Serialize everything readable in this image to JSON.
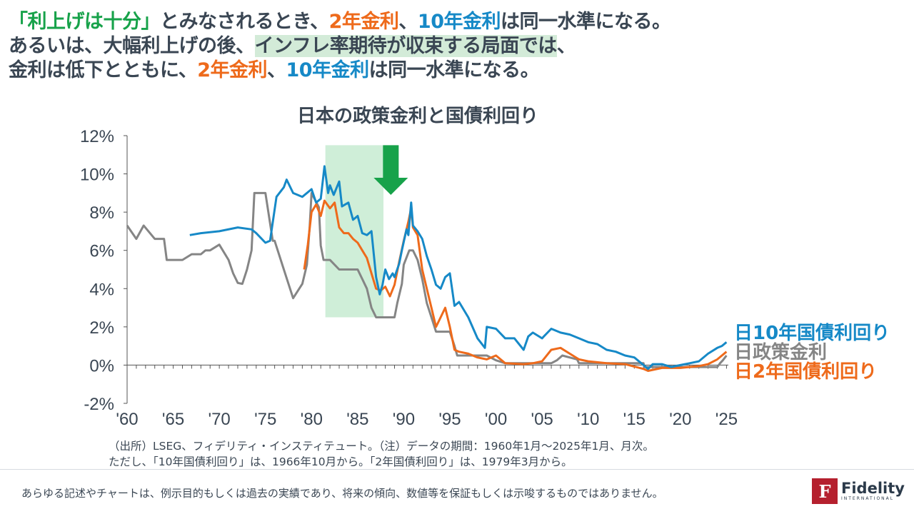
{
  "headline": {
    "line1": [
      {
        "text": "「利上げは十分」",
        "style": "green"
      },
      {
        "text": "とみなされるとき、",
        "style": ""
      },
      {
        "text": "2年金利",
        "style": "orange"
      },
      {
        "text": "、",
        "style": ""
      },
      {
        "text": "10年金利",
        "style": "blue"
      },
      {
        "text": "は同一水準になる。",
        "style": ""
      }
    ],
    "line2": [
      {
        "text": "あるいは、大幅利上げの後、",
        "style": ""
      },
      {
        "text": "インフレ率期待が収束する局面では",
        "style": "hilite"
      },
      {
        "text": "、",
        "style": ""
      }
    ],
    "line3": [
      {
        "text": "金利は低下とともに、",
        "style": ""
      },
      {
        "text": "2年金利",
        "style": "orange"
      },
      {
        "text": "、",
        "style": ""
      },
      {
        "text": "10年金利",
        "style": "blue"
      },
      {
        "text": "は同一水準になる。",
        "style": ""
      }
    ]
  },
  "chart_data": {
    "type": "line",
    "title": "日本の政策金利と国債利回り",
    "x_tick_labels": [
      "'60",
      "'65",
      "'70",
      "'75",
      "'80",
      "'85",
      "'90",
      "'95",
      "'00",
      "'05",
      "'10",
      "'15",
      "'20",
      "'25"
    ],
    "x_tick_years": [
      1960,
      1965,
      1970,
      1975,
      1980,
      1985,
      1990,
      1995,
      2000,
      2005,
      2010,
      2015,
      2020,
      2025
    ],
    "y_tick_labels": [
      "12%",
      "10%",
      "8%",
      "6%",
      "4%",
      "2%",
      "0%",
      "-2%"
    ],
    "y_tick_values": [
      12,
      10,
      8,
      6,
      4,
      2,
      0,
      -2
    ],
    "xlim": [
      1960,
      2025.2
    ],
    "ylim": [
      -2,
      12
    ],
    "units": "%",
    "legend_placement": "right (labels at line ends)",
    "grid": false,
    "highlight_band": {
      "x": [
        1981.5,
        1987.8
      ],
      "y": [
        2.5,
        11.5
      ],
      "color": "#cfeed8"
    },
    "arrow": {
      "x": 1988.6,
      "y_from": 11.5,
      "y_to": 8.9,
      "color": "#17a24a"
    },
    "series": [
      {
        "name": "日10年国債利回り",
        "color": "#1689c7",
        "points": [
          [
            1966.8,
            6.8
          ],
          [
            1968,
            6.9
          ],
          [
            1970,
            7.0
          ],
          [
            1972,
            7.2
          ],
          [
            1973.5,
            7.1
          ],
          [
            1974,
            6.9
          ],
          [
            1975,
            6.4
          ],
          [
            1975.5,
            6.5
          ],
          [
            1976.2,
            8.8
          ],
          [
            1977,
            9.3
          ],
          [
            1977.3,
            9.7
          ],
          [
            1978,
            9.0
          ],
          [
            1979,
            8.8
          ],
          [
            1980,
            9.2
          ],
          [
            1980.5,
            8.5
          ],
          [
            1981,
            8.7
          ],
          [
            1981.4,
            10.4
          ],
          [
            1981.8,
            9.0
          ],
          [
            1982,
            9.4
          ],
          [
            1982.4,
            8.9
          ],
          [
            1983,
            9.6
          ],
          [
            1983.3,
            8.3
          ],
          [
            1984,
            8.5
          ],
          [
            1984.5,
            7.6
          ],
          [
            1985,
            7.8
          ],
          [
            1985.5,
            6.9
          ],
          [
            1986,
            6.8
          ],
          [
            1986.5,
            7.0
          ],
          [
            1987,
            4.6
          ],
          [
            1987.4,
            3.7
          ],
          [
            1987.7,
            4.2
          ],
          [
            1988,
            5.0
          ],
          [
            1988.4,
            4.5
          ],
          [
            1988.8,
            4.8
          ],
          [
            1989,
            4.6
          ],
          [
            1989.5,
            5.3
          ],
          [
            1989.8,
            6.0
          ],
          [
            1990.3,
            7.1
          ],
          [
            1990.5,
            6.8
          ],
          [
            1990.8,
            8.5
          ],
          [
            1991,
            7.3
          ],
          [
            1991.5,
            7.0
          ],
          [
            1992,
            6.6
          ],
          [
            1992.5,
            5.7
          ],
          [
            1993,
            5.0
          ],
          [
            1993.5,
            4.2
          ],
          [
            1994,
            4.0
          ],
          [
            1994.5,
            4.6
          ],
          [
            1995,
            4.8
          ],
          [
            1995.5,
            3.1
          ],
          [
            1996,
            3.3
          ],
          [
            1997,
            2.5
          ],
          [
            1998,
            1.4
          ],
          [
            1998.8,
            0.9
          ],
          [
            1999,
            2.0
          ],
          [
            2000,
            1.9
          ],
          [
            2001,
            1.4
          ],
          [
            2002,
            1.4
          ],
          [
            2003,
            0.8
          ],
          [
            2003.5,
            1.5
          ],
          [
            2004,
            1.7
          ],
          [
            2005,
            1.4
          ],
          [
            2006,
            1.9
          ],
          [
            2007,
            1.7
          ],
          [
            2008,
            1.6
          ],
          [
            2009,
            1.4
          ],
          [
            2010,
            1.2
          ],
          [
            2011,
            1.1
          ],
          [
            2012,
            0.8
          ],
          [
            2013,
            0.7
          ],
          [
            2014,
            0.5
          ],
          [
            2015,
            0.4
          ],
          [
            2016,
            0.0
          ],
          [
            2016.5,
            -0.2
          ],
          [
            2017,
            0.05
          ],
          [
            2018,
            0.05
          ],
          [
            2019,
            -0.1
          ],
          [
            2020,
            0.0
          ],
          [
            2021,
            0.1
          ],
          [
            2022,
            0.2
          ],
          [
            2023,
            0.6
          ],
          [
            2024,
            0.9
          ],
          [
            2024.5,
            1.0
          ],
          [
            2025,
            1.2
          ]
        ]
      },
      {
        "name": "日政策金利",
        "color": "#858585",
        "points": [
          [
            1960,
            7.3
          ],
          [
            1961,
            6.6
          ],
          [
            1961.8,
            7.3
          ],
          [
            1963,
            6.6
          ],
          [
            1964,
            6.6
          ],
          [
            1964.3,
            5.5
          ],
          [
            1965,
            5.5
          ],
          [
            1966,
            5.5
          ],
          [
            1967,
            5.8
          ],
          [
            1968,
            5.8
          ],
          [
            1968.5,
            6.0
          ],
          [
            1969,
            6.0
          ],
          [
            1970,
            6.3
          ],
          [
            1971,
            5.5
          ],
          [
            1971.5,
            4.8
          ],
          [
            1972,
            4.3
          ],
          [
            1972.5,
            4.25
          ],
          [
            1973,
            5.0
          ],
          [
            1973.5,
            6.0
          ],
          [
            1973.8,
            9.0
          ],
          [
            1975,
            9.0
          ],
          [
            1975.8,
            6.5
          ],
          [
            1976,
            6.5
          ],
          [
            1977,
            5.0
          ],
          [
            1978,
            3.5
          ],
          [
            1979,
            4.25
          ],
          [
            1979.5,
            5.25
          ],
          [
            1979.8,
            7.25
          ],
          [
            1980,
            9.0
          ],
          [
            1980.8,
            8.25
          ],
          [
            1981,
            6.25
          ],
          [
            1981.3,
            5.5
          ],
          [
            1982,
            5.5
          ],
          [
            1983,
            5.0
          ],
          [
            1984,
            5.0
          ],
          [
            1985,
            5.0
          ],
          [
            1986,
            4.0
          ],
          [
            1986.5,
            3.0
          ],
          [
            1987,
            2.5
          ],
          [
            1988,
            2.5
          ],
          [
            1989,
            2.5
          ],
          [
            1989.3,
            3.25
          ],
          [
            1989.8,
            4.25
          ],
          [
            1990,
            5.25
          ],
          [
            1990.6,
            6.0
          ],
          [
            1991,
            6.0
          ],
          [
            1991.5,
            5.5
          ],
          [
            1992,
            4.5
          ],
          [
            1992.5,
            3.25
          ],
          [
            1993,
            2.5
          ],
          [
            1993.5,
            1.75
          ],
          [
            1995,
            1.75
          ],
          [
            1995.5,
            1.0
          ],
          [
            1995.8,
            0.5
          ],
          [
            1999,
            0.5
          ],
          [
            2000,
            0.25
          ],
          [
            2001,
            0.1
          ],
          [
            2006,
            0.1
          ],
          [
            2006.6,
            0.25
          ],
          [
            2007.2,
            0.5
          ],
          [
            2008.8,
            0.3
          ],
          [
            2009,
            0.1
          ],
          [
            2016,
            0.1
          ],
          [
            2016.1,
            -0.1
          ],
          [
            2024,
            -0.1
          ],
          [
            2024.3,
            0.1
          ],
          [
            2024.6,
            0.25
          ],
          [
            2025,
            0.5
          ]
        ]
      },
      {
        "name": "日2年国債利回り",
        "color": "#ee6a1b",
        "points": [
          [
            1979.2,
            5.0
          ],
          [
            1979.6,
            6.3
          ],
          [
            1980,
            8.0
          ],
          [
            1980.5,
            8.4
          ],
          [
            1981,
            7.8
          ],
          [
            1981.4,
            8.6
          ],
          [
            1982,
            8.2
          ],
          [
            1982.5,
            8.5
          ],
          [
            1983,
            7.2
          ],
          [
            1983.5,
            6.9
          ],
          [
            1984,
            6.9
          ],
          [
            1984.5,
            6.6
          ],
          [
            1985,
            6.4
          ],
          [
            1985.5,
            6.0
          ],
          [
            1986,
            5.6
          ],
          [
            1986.5,
            4.8
          ],
          [
            1987,
            4.0
          ],
          [
            1987.5,
            3.9
          ],
          [
            1988,
            4.1
          ],
          [
            1988.5,
            3.6
          ],
          [
            1989,
            4.2
          ],
          [
            1989.5,
            5.4
          ],
          [
            1990,
            6.5
          ],
          [
            1990.5,
            7.5
          ],
          [
            1990.8,
            8.2
          ],
          [
            1991,
            7.2
          ],
          [
            1991.5,
            6.8
          ],
          [
            1992,
            5.0
          ],
          [
            1992.5,
            4.0
          ],
          [
            1993,
            3.0
          ],
          [
            1993.5,
            2.0
          ],
          [
            1994,
            2.5
          ],
          [
            1994.5,
            3.0
          ],
          [
            1995,
            2.0
          ],
          [
            1995.5,
            0.8
          ],
          [
            1996,
            0.7
          ],
          [
            1997,
            0.6
          ],
          [
            1998,
            0.4
          ],
          [
            1999,
            0.3
          ],
          [
            2000,
            0.5
          ],
          [
            2001,
            0.1
          ],
          [
            2003,
            0.05
          ],
          [
            2004,
            0.1
          ],
          [
            2005,
            0.2
          ],
          [
            2006,
            0.8
          ],
          [
            2007,
            0.9
          ],
          [
            2008,
            0.6
          ],
          [
            2009,
            0.3
          ],
          [
            2010,
            0.2
          ],
          [
            2012,
            0.1
          ],
          [
            2014,
            0.05
          ],
          [
            2016,
            -0.2
          ],
          [
            2016.5,
            -0.3
          ],
          [
            2018,
            -0.15
          ],
          [
            2020,
            -0.15
          ],
          [
            2022,
            -0.05
          ],
          [
            2023,
            0.05
          ],
          [
            2024,
            0.3
          ],
          [
            2024.5,
            0.5
          ],
          [
            2025,
            0.7
          ]
        ]
      }
    ]
  },
  "source_note": {
    "line1": "（出所）LSEG、フィデリティ・インスティテュート。（注）データの期間：1960年1月～2025年1月、月次。",
    "line2": "ただし、「10年国債利回り」は、1966年10月から。「2年国債利回り」は、1979年3月から。"
  },
  "disclaimer": "あらゆる記述やチャートは、例示目的もしくは過去の実績であり、将来の傾向、数値等を保証もしくは示唆するものではありません。",
  "logo": {
    "mark": "F",
    "name": "Fidelity",
    "sub": "INTERNATIONAL",
    "color": "#b5202e"
  }
}
